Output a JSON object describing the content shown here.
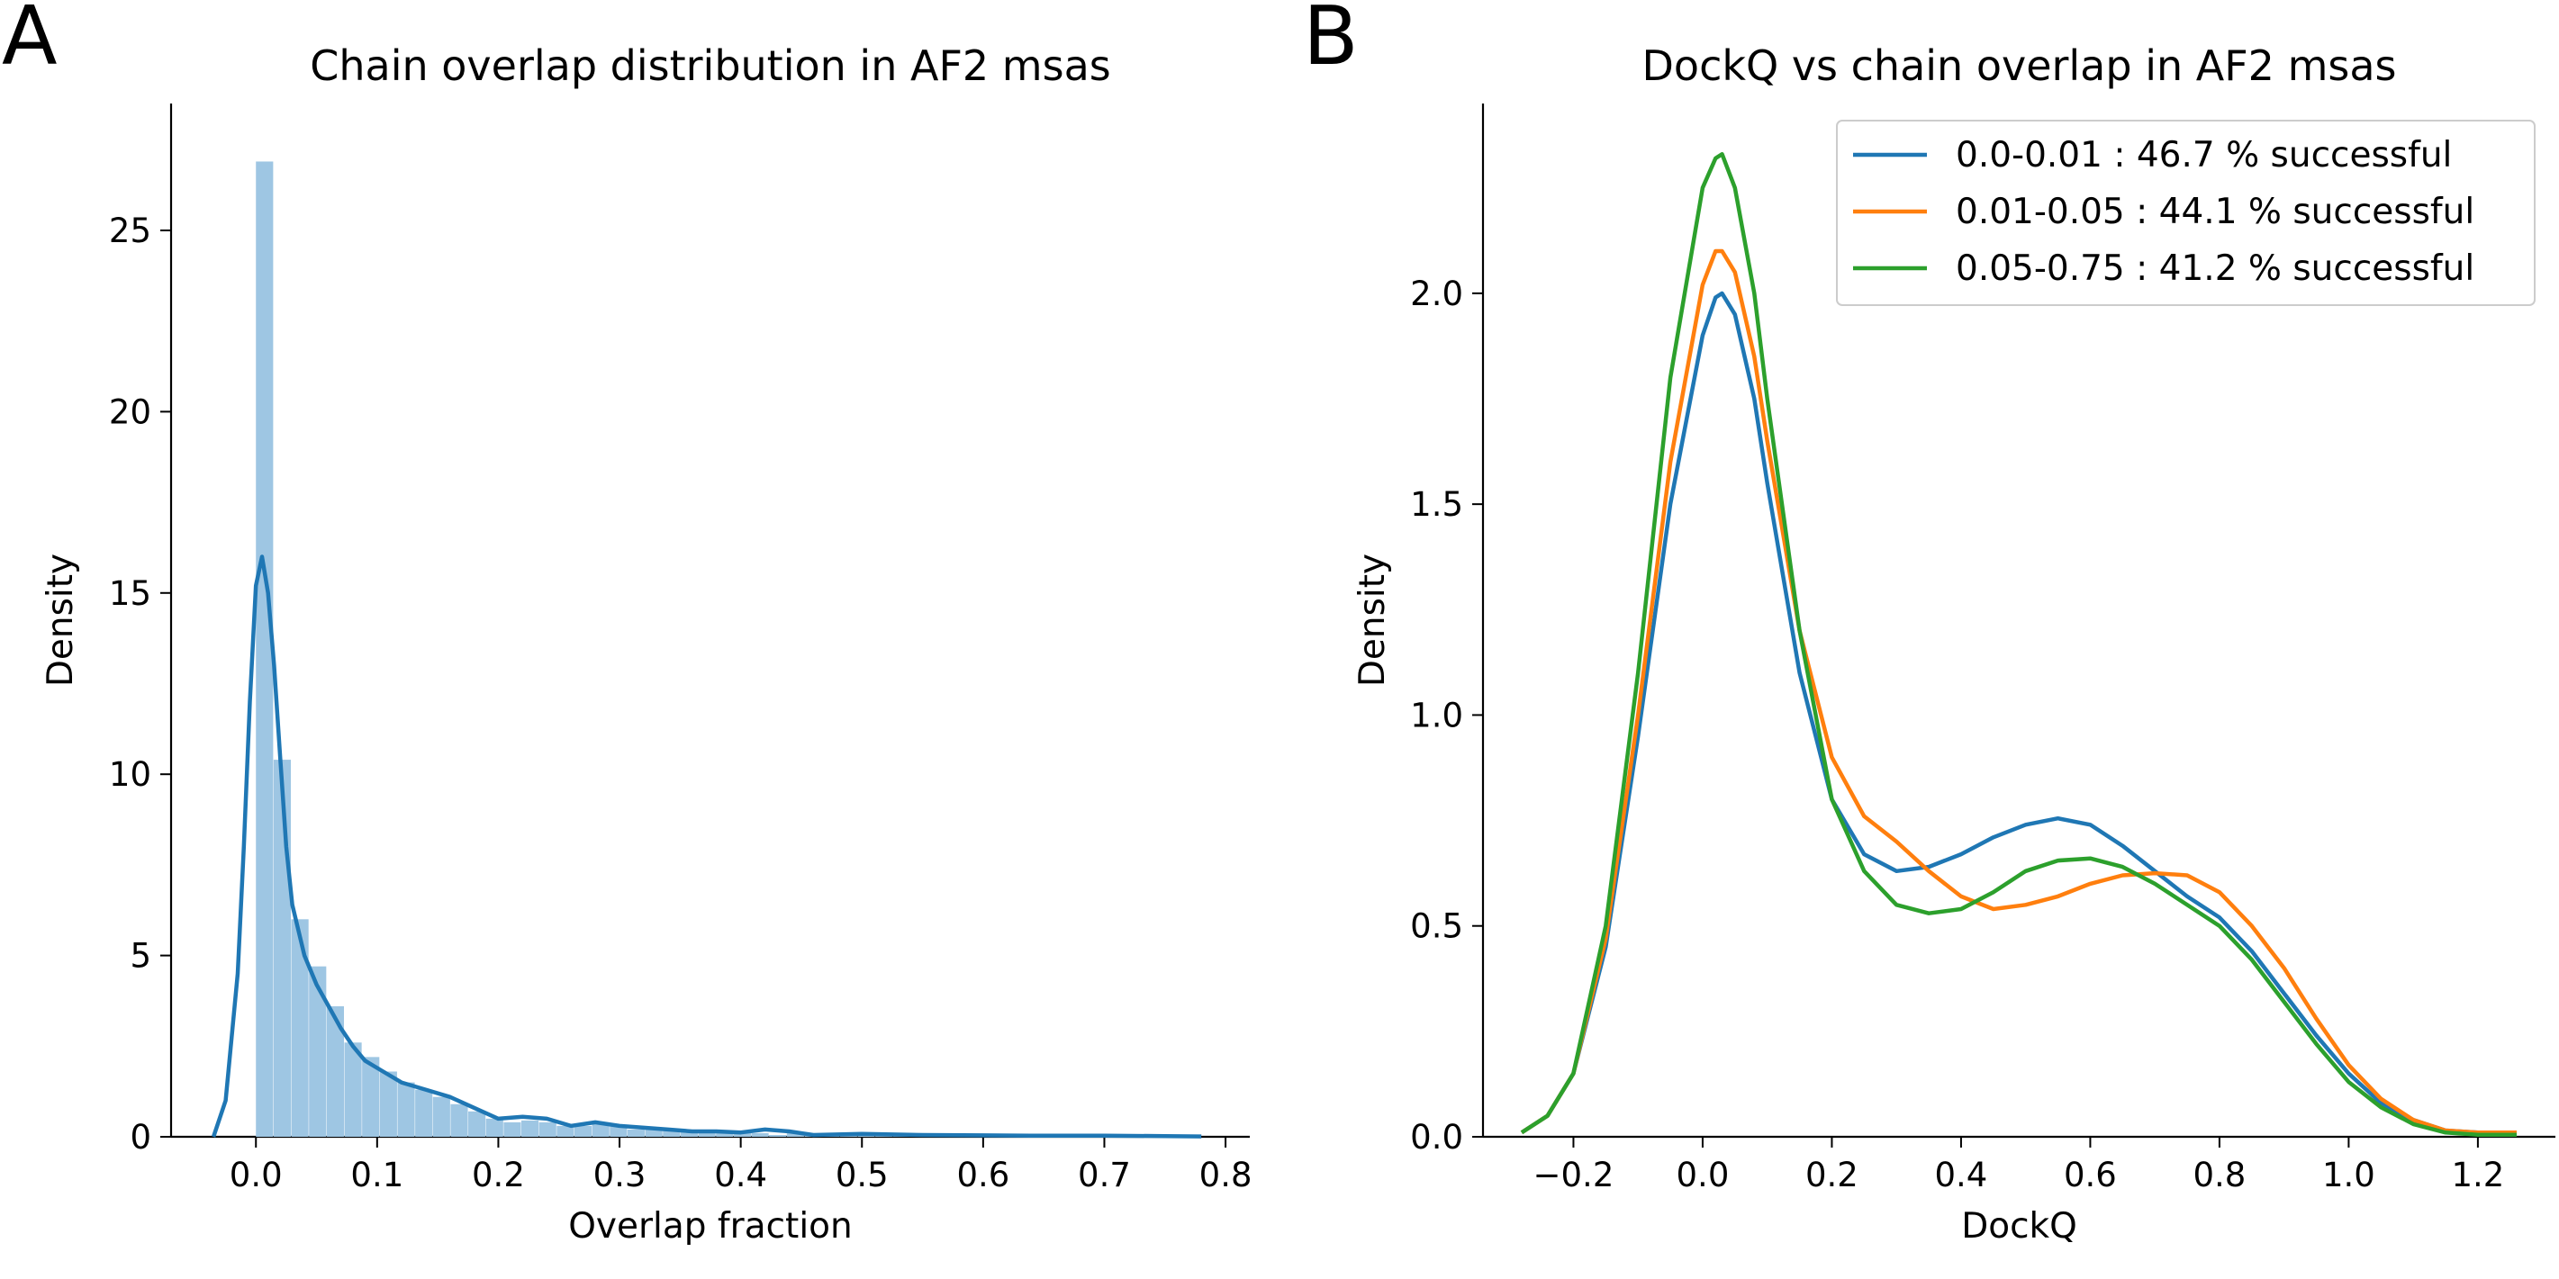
{
  "panels": {
    "a_letter": "A",
    "b_letter": "B"
  },
  "colors": {
    "blue": "#1f77b4",
    "orange": "#ff7f0e",
    "green": "#2ca02c",
    "hist_fill": "#9ec6e3"
  },
  "chart_data": [
    {
      "type": "bar",
      "title": "Chain overlap distribution in AF2 msas",
      "xlabel": "Overlap fraction",
      "ylabel": "Density",
      "xlim": [
        -0.07,
        0.82
      ],
      "ylim": [
        0,
        28.5
      ],
      "xticks": [
        0.0,
        0.1,
        0.2,
        0.3,
        0.4,
        0.5,
        0.6,
        0.7,
        0.8
      ],
      "xtick_labels": [
        "0.0",
        "0.1",
        "0.2",
        "0.3",
        "0.4",
        "0.5",
        "0.6",
        "0.7",
        "0.8"
      ],
      "yticks": [
        0,
        5,
        10,
        15,
        20,
        25
      ],
      "ytick_labels": [
        "0",
        "5",
        "10",
        "15",
        "20",
        "25"
      ],
      "bin_width": 0.0146,
      "histogram": {
        "bin_starts": [
          0.0,
          0.0146,
          0.0292,
          0.0438,
          0.0584,
          0.073,
          0.0876,
          0.1022,
          0.1168,
          0.1314,
          0.146,
          0.1606,
          0.1752,
          0.1898,
          0.2044,
          0.219,
          0.2336,
          0.2482,
          0.2628,
          0.2774,
          0.292,
          0.3066,
          0.3212,
          0.3358,
          0.3504,
          0.365,
          0.3796,
          0.3942,
          0.4088,
          0.4234,
          0.438,
          0.4526,
          0.4672,
          0.4818,
          0.4964,
          0.511,
          0.5256,
          0.5402,
          0.5548,
          0.5694,
          0.584,
          0.5986,
          0.6132,
          0.6278,
          0.6424,
          0.657,
          0.6716,
          0.6862,
          0.7008,
          0.7154,
          0.73,
          0.7446,
          0.7592
        ],
        "densities": [
          26.9,
          10.4,
          6.0,
          4.7,
          3.6,
          2.6,
          2.2,
          1.8,
          1.5,
          1.3,
          1.1,
          0.9,
          0.7,
          0.5,
          0.4,
          0.45,
          0.4,
          0.3,
          0.3,
          0.35,
          0.3,
          0.2,
          0.25,
          0.2,
          0.15,
          0.15,
          0.1,
          0.15,
          0.1,
          0.05,
          0.1,
          0.05,
          0.05,
          0.05,
          0.05,
          0.05,
          0.05,
          0.02,
          0.02,
          0.02,
          0.02,
          0.02,
          0.02,
          0.02,
          0.02,
          0.02,
          0.02,
          0.02,
          0.02,
          0.02,
          0.02,
          0.02,
          0.02
        ]
      },
      "kde": {
        "x": [
          -0.035,
          -0.025,
          -0.015,
          -0.01,
          -0.005,
          0.0,
          0.005,
          0.01,
          0.015,
          0.02,
          0.025,
          0.03,
          0.04,
          0.05,
          0.06,
          0.07,
          0.08,
          0.09,
          0.1,
          0.12,
          0.14,
          0.16,
          0.18,
          0.2,
          0.22,
          0.24,
          0.26,
          0.28,
          0.3,
          0.32,
          0.34,
          0.36,
          0.38,
          0.4,
          0.42,
          0.44,
          0.46,
          0.5,
          0.55,
          0.6,
          0.65,
          0.7,
          0.75,
          0.78
        ],
        "y": [
          0.0,
          1.0,
          4.5,
          8.0,
          12.0,
          15.2,
          16.0,
          15.0,
          13.0,
          10.5,
          8.0,
          6.4,
          5.0,
          4.2,
          3.6,
          3.0,
          2.5,
          2.1,
          1.9,
          1.5,
          1.3,
          1.1,
          0.8,
          0.5,
          0.55,
          0.5,
          0.3,
          0.4,
          0.3,
          0.25,
          0.2,
          0.15,
          0.15,
          0.12,
          0.2,
          0.15,
          0.05,
          0.08,
          0.05,
          0.04,
          0.03,
          0.03,
          0.02,
          0.01
        ]
      }
    },
    {
      "type": "line",
      "title": "DockQ vs chain overlap in AF2 msas",
      "xlabel": "DockQ",
      "ylabel": "Density",
      "xlim": [
        -0.34,
        1.32
      ],
      "ylim": [
        0,
        2.45
      ],
      "xticks": [
        -0.2,
        0.0,
        0.2,
        0.4,
        0.6,
        0.8,
        1.0,
        1.2
      ],
      "xtick_labels": [
        "−0.2",
        "0.0",
        "0.2",
        "0.4",
        "0.6",
        "0.8",
        "1.0",
        "1.2"
      ],
      "yticks": [
        0.0,
        0.5,
        1.0,
        1.5,
        2.0
      ],
      "ytick_labels": [
        "0.0",
        "0.5",
        "1.0",
        "1.5",
        "2.0"
      ],
      "legend_position": "top-right",
      "series": [
        {
          "name": "0.0-0.01 : 46.7 % successful",
          "color": "#1f77b4",
          "x": [
            -0.28,
            -0.24,
            -0.2,
            -0.15,
            -0.1,
            -0.05,
            0.0,
            0.02,
            0.03,
            0.05,
            0.08,
            0.1,
            0.15,
            0.2,
            0.25,
            0.3,
            0.35,
            0.4,
            0.45,
            0.5,
            0.55,
            0.6,
            0.65,
            0.7,
            0.75,
            0.8,
            0.85,
            0.9,
            0.95,
            1.0,
            1.05,
            1.1,
            1.15,
            1.2,
            1.26
          ],
          "y": [
            0.01,
            0.05,
            0.15,
            0.45,
            0.95,
            1.5,
            1.9,
            1.99,
            2.0,
            1.95,
            1.75,
            1.55,
            1.1,
            0.8,
            0.67,
            0.63,
            0.64,
            0.67,
            0.71,
            0.74,
            0.755,
            0.74,
            0.69,
            0.63,
            0.57,
            0.52,
            0.44,
            0.34,
            0.24,
            0.15,
            0.08,
            0.04,
            0.015,
            0.01,
            0.01
          ]
        },
        {
          "name": "0.01-0.05 : 44.1 % successful",
          "color": "#ff7f0e",
          "x": [
            -0.28,
            -0.24,
            -0.2,
            -0.15,
            -0.1,
            -0.05,
            0.0,
            0.02,
            0.03,
            0.05,
            0.08,
            0.1,
            0.15,
            0.2,
            0.25,
            0.3,
            0.35,
            0.4,
            0.45,
            0.5,
            0.55,
            0.6,
            0.65,
            0.7,
            0.75,
            0.8,
            0.85,
            0.9,
            0.95,
            1.0,
            1.05,
            1.1,
            1.15,
            1.2,
            1.26
          ],
          "y": [
            0.01,
            0.05,
            0.15,
            0.47,
            1.0,
            1.6,
            2.02,
            2.1,
            2.1,
            2.05,
            1.85,
            1.65,
            1.2,
            0.9,
            0.76,
            0.7,
            0.63,
            0.57,
            0.54,
            0.55,
            0.57,
            0.6,
            0.62,
            0.625,
            0.62,
            0.58,
            0.5,
            0.4,
            0.28,
            0.17,
            0.09,
            0.04,
            0.015,
            0.01,
            0.01
          ]
        },
        {
          "name": "0.05-0.75 : 41.2 % successful",
          "color": "#2ca02c",
          "x": [
            -0.28,
            -0.24,
            -0.2,
            -0.15,
            -0.1,
            -0.05,
            0.0,
            0.02,
            0.03,
            0.05,
            0.08,
            0.1,
            0.15,
            0.2,
            0.25,
            0.3,
            0.35,
            0.4,
            0.45,
            0.5,
            0.55,
            0.6,
            0.65,
            0.7,
            0.75,
            0.8,
            0.85,
            0.9,
            0.95,
            1.0,
            1.05,
            1.1,
            1.15,
            1.2,
            1.26
          ],
          "y": [
            0.01,
            0.05,
            0.15,
            0.5,
            1.1,
            1.8,
            2.25,
            2.32,
            2.33,
            2.25,
            2.0,
            1.75,
            1.2,
            0.8,
            0.63,
            0.55,
            0.53,
            0.54,
            0.58,
            0.63,
            0.655,
            0.66,
            0.64,
            0.6,
            0.55,
            0.5,
            0.42,
            0.32,
            0.22,
            0.13,
            0.07,
            0.03,
            0.01,
            0.005,
            0.005
          ]
        }
      ]
    }
  ]
}
